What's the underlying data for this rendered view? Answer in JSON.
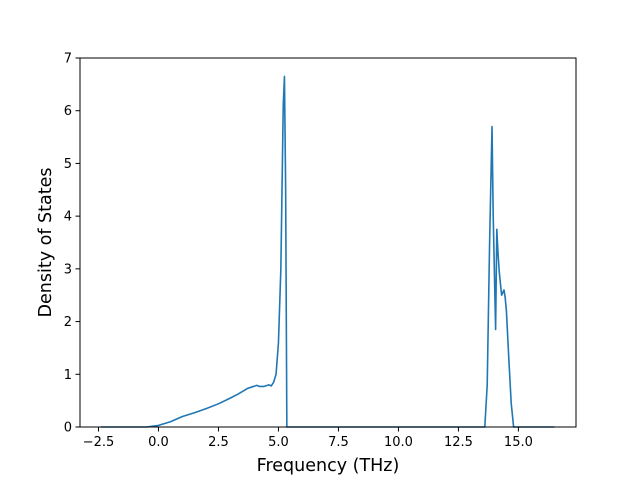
{
  "chart_data": {
    "type": "line",
    "title": "",
    "xlabel": "Frequency (THz)",
    "ylabel": "Density of States",
    "xlim": [
      -3.27,
      17.4
    ],
    "ylim": [
      0,
      7
    ],
    "grid": false,
    "legend": "none",
    "xticks": [
      -2.5,
      0.0,
      2.5,
      5.0,
      7.5,
      10.0,
      12.5,
      15.0
    ],
    "xtick_labels": [
      "−2.5",
      "0.0",
      "2.5",
      "5.0",
      "7.5",
      "10.0",
      "12.5",
      "15.0"
    ],
    "yticks": [
      0,
      1,
      2,
      3,
      4,
      5,
      6,
      7
    ],
    "ytick_labels": [
      "0",
      "1",
      "2",
      "3",
      "4",
      "5",
      "6",
      "7"
    ],
    "series": [
      {
        "color": "#1f77b4",
        "x": [
          -2.4,
          -1.0,
          -0.5,
          0.0,
          0.5,
          1.0,
          1.5,
          2.0,
          2.5,
          3.0,
          3.3,
          3.6,
          3.7,
          3.9,
          4.1,
          4.2,
          4.4,
          4.6,
          4.7,
          4.8,
          4.9,
          5.0,
          5.1,
          5.2,
          5.25,
          5.3,
          5.35,
          5.4,
          5.5,
          7.5,
          10.0,
          12.5,
          13.6,
          13.7,
          13.8,
          13.9,
          13.95,
          14.05,
          14.1,
          14.15,
          14.2,
          14.3,
          14.4,
          14.45,
          14.5,
          14.6,
          14.7,
          14.8,
          14.9,
          15.0,
          15.5,
          16.5
        ],
        "y": [
          0,
          0,
          0,
          0.03,
          0.1,
          0.2,
          0.27,
          0.35,
          0.44,
          0.55,
          0.62,
          0.7,
          0.73,
          0.76,
          0.79,
          0.77,
          0.77,
          0.8,
          0.78,
          0.85,
          1.0,
          1.6,
          3.0,
          6.1,
          6.65,
          4.5,
          0,
          0,
          0,
          0,
          0,
          0,
          0,
          0.8,
          3.5,
          5.7,
          4.0,
          1.85,
          3.75,
          3.3,
          2.95,
          2.5,
          2.6,
          2.45,
          2.2,
          1.3,
          0.45,
          0,
          0,
          0,
          0,
          0
        ]
      }
    ]
  }
}
